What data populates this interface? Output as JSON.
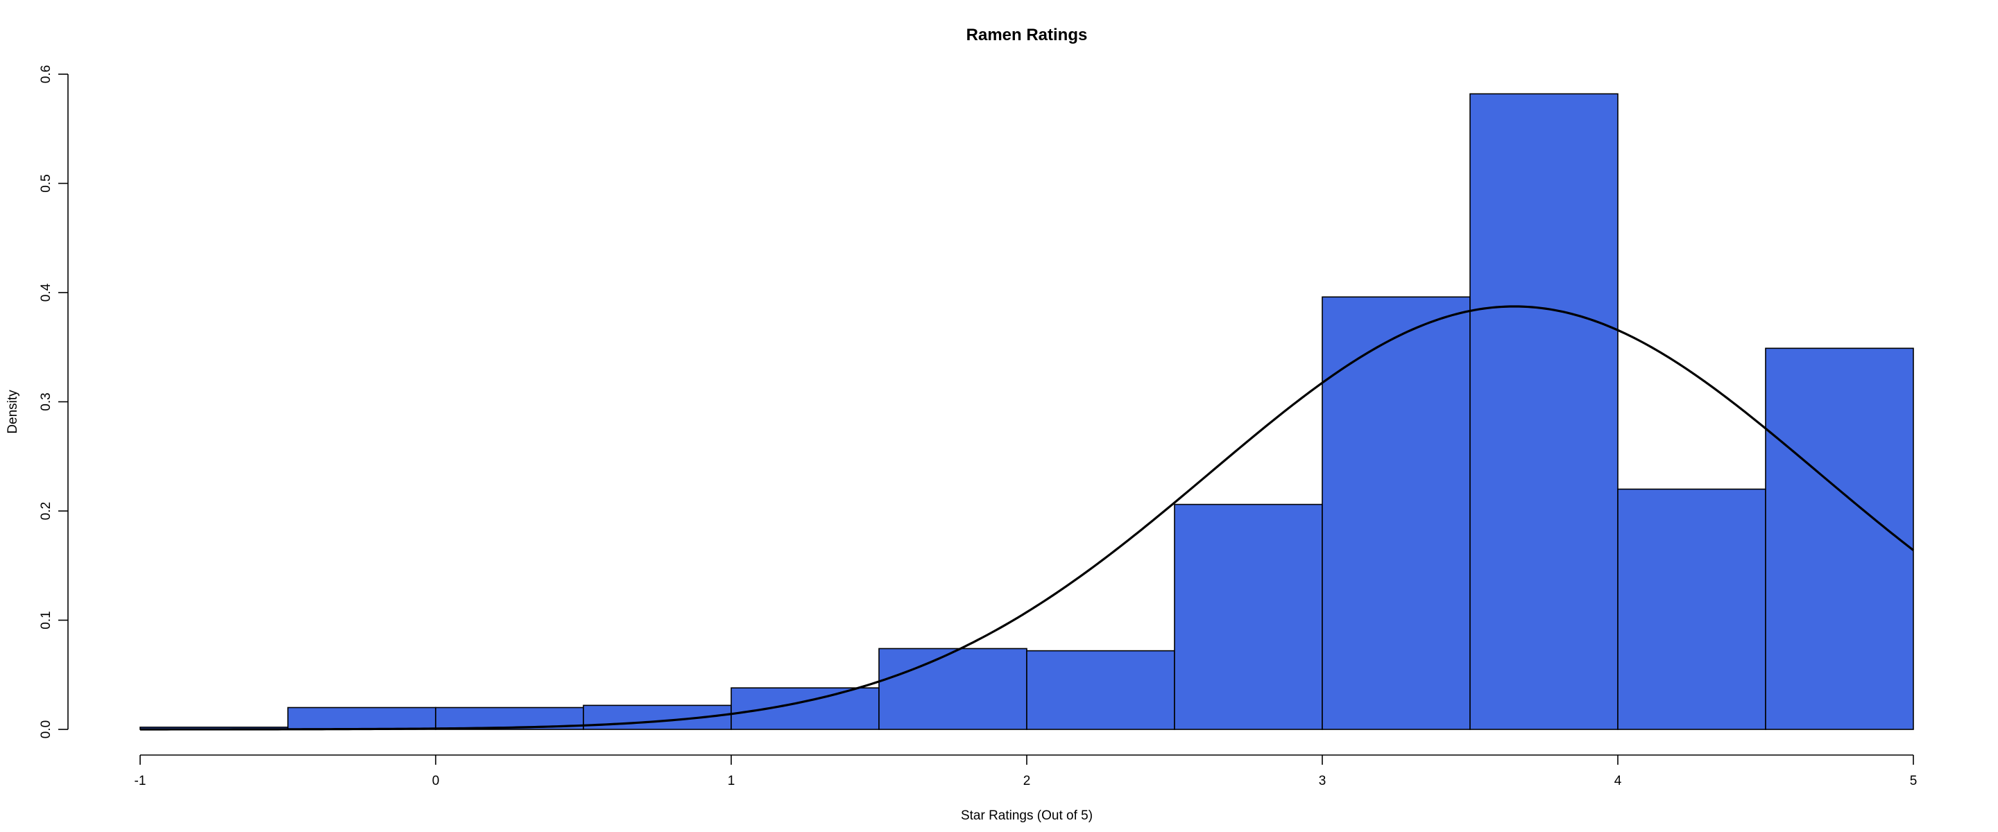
{
  "chart_data": {
    "type": "bar",
    "title": "Ramen Ratings",
    "xlabel": "Star Ratings (Out of 5)",
    "ylabel": "Density",
    "xlim": [
      -1,
      5
    ],
    "ylim": [
      0,
      0.6
    ],
    "x_ticks": [
      "-1",
      "0",
      "1",
      "2",
      "3",
      "4",
      "5"
    ],
    "y_ticks": [
      "0.0",
      "0.1",
      "0.2",
      "0.3",
      "0.4",
      "0.5",
      "0.6"
    ],
    "bin_edges": [
      -1,
      -0.5,
      0,
      0.5,
      1,
      1.5,
      2,
      2.5,
      3,
      3.5,
      4,
      4.5,
      5
    ],
    "values": [
      0.002,
      0.02,
      0.02,
      0.022,
      0.038,
      0.074,
      0.072,
      0.206,
      0.396,
      0.582,
      0.22,
      0.349
    ],
    "density_curve": {
      "type": "line",
      "distribution": "normal",
      "mean": 3.65,
      "sd": 1.03
    },
    "bar_color": "#4169E1",
    "grid": false,
    "legend": "none"
  }
}
